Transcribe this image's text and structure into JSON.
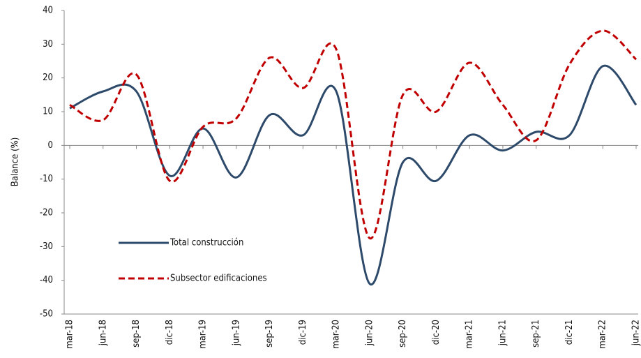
{
  "chart_data": {
    "type": "line",
    "y_label": "Balance (%)",
    "categories": [
      "mar-18",
      "jun-18",
      "sep-18",
      "dic-18",
      "mar-19",
      "jun-19",
      "sep-19",
      "dic-19",
      "mar-20",
      "jun-20",
      "sep-20",
      "dic-20",
      "mar-21",
      "jun-21",
      "sep-21",
      "dic-21",
      "mar-22",
      "jun-22"
    ],
    "series": [
      {
        "name": "Total construcción",
        "color": "#2e4a6b",
        "dash": "solid",
        "values": [
          11,
          16,
          16,
          -9,
          5,
          -9.5,
          9,
          3,
          16,
          -41,
          -5,
          -10.5,
          3,
          -1.5,
          4,
          3,
          23.5,
          12
        ]
      },
      {
        "name": "Subsector edificaciones",
        "color": "#c00000",
        "dash": "dashed",
        "values": [
          12,
          7.5,
          21,
          -10.5,
          5.5,
          8,
          26,
          17,
          28.5,
          -27.5,
          15,
          10,
          24.5,
          12,
          1.5,
          24,
          34,
          25.5
        ]
      }
    ],
    "ylim": [
      -50,
      40
    ],
    "yticks": [
      -50,
      -40,
      -30,
      -20,
      -10,
      0,
      10,
      20,
      30,
      40
    ],
    "legend": "left"
  }
}
